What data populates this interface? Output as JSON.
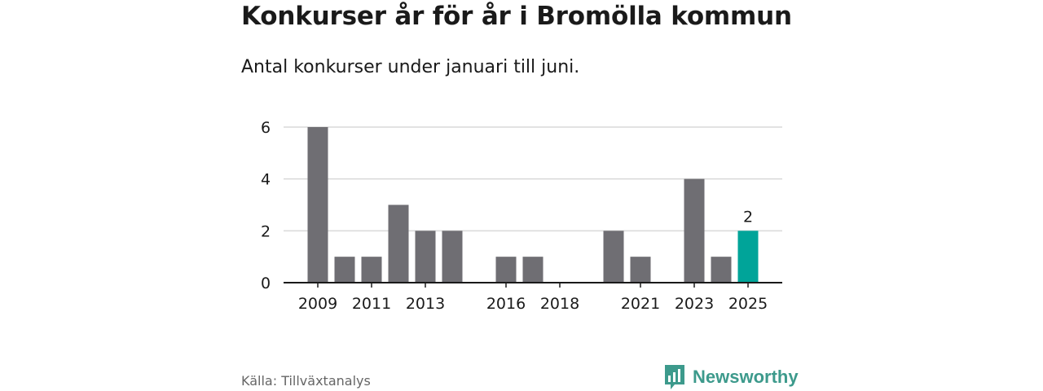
{
  "title": "Konkurser år för år i Bromölla kommun",
  "subtitle": "Antal konkurser under januari till juni.",
  "source": "Källa: Tillväxtanalys",
  "brand": {
    "name": "Newsworthy",
    "icon": "newsworthy-logo-icon"
  },
  "colors": {
    "bar": "#6f6e73",
    "highlight": "#00a499",
    "grid": "#d9d9d9",
    "axis": "#1a1a1a",
    "brand": "#3d9a8c"
  },
  "chart_data": {
    "type": "bar",
    "title": "Konkurser år för år i Bromölla kommun",
    "subtitle": "Antal konkurser under januari till juni.",
    "categories": [
      "2009",
      "2010",
      "2011",
      "2012",
      "2013",
      "2014",
      "2015",
      "2016",
      "2017",
      "2018",
      "2019",
      "2020",
      "2021",
      "2022",
      "2023",
      "2024",
      "2025"
    ],
    "values": [
      6,
      1,
      1,
      3,
      2,
      2,
      0,
      1,
      1,
      0,
      0,
      2,
      1,
      0,
      4,
      1,
      2
    ],
    "x_tick_labels": [
      "2009",
      "2011",
      "2013",
      "2016",
      "2018",
      "2021",
      "2023",
      "2025"
    ],
    "y_ticks": [
      0,
      2,
      4,
      6
    ],
    "ylim": [
      0,
      6
    ],
    "grid": true,
    "highlight": {
      "category": "2025",
      "label": "2"
    }
  }
}
